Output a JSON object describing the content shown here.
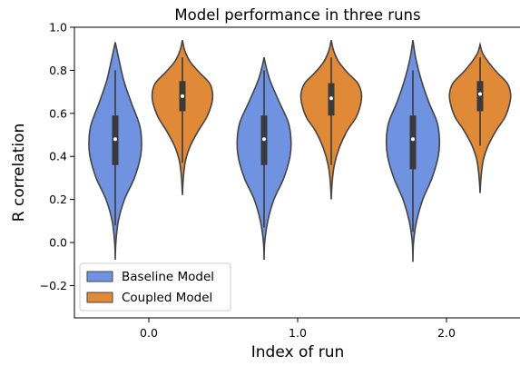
{
  "chart_data": {
    "type": "violin",
    "title": "Model performance in three runs",
    "xlabel": "Index of run",
    "ylabel": "R correlation",
    "categories": [
      "0.0",
      "1.0",
      "2.0"
    ],
    "ylim": [
      -0.35,
      1.0
    ],
    "yticks": [
      -0.2,
      0.0,
      0.2,
      0.4,
      0.6,
      0.8,
      1.0
    ],
    "ytick_labels": [
      "−0.2",
      "0.0",
      "0.2",
      "0.4",
      "0.6",
      "0.8",
      "1.0"
    ],
    "grid": false,
    "legend": {
      "position": "lower-left"
    },
    "series": [
      {
        "name": "Baseline Model",
        "color": "#6f93e0",
        "violins": [
          {
            "min": -0.08,
            "max": 0.93,
            "q1": 0.36,
            "median": 0.48,
            "q3": 0.59,
            "whisker_low": 0.08,
            "whisker_high": 0.8,
            "profile": [
              [
                -0.08,
                0.0
              ],
              [
                0.0,
                0.02
              ],
              [
                0.1,
                0.1
              ],
              [
                0.2,
                0.3
              ],
              [
                0.3,
                0.62
              ],
              [
                0.4,
                0.82
              ],
              [
                0.48,
                0.85
              ],
              [
                0.55,
                0.78
              ],
              [
                0.65,
                0.52
              ],
              [
                0.75,
                0.28
              ],
              [
                0.85,
                0.12
              ],
              [
                0.93,
                0.0
              ]
            ]
          },
          {
            "min": -0.08,
            "max": 0.86,
            "q1": 0.36,
            "median": 0.48,
            "q3": 0.59,
            "whisker_low": 0.07,
            "whisker_high": 0.8,
            "profile": [
              [
                -0.08,
                0.0
              ],
              [
                0.0,
                0.02
              ],
              [
                0.1,
                0.12
              ],
              [
                0.2,
                0.32
              ],
              [
                0.3,
                0.64
              ],
              [
                0.4,
                0.84
              ],
              [
                0.48,
                0.87
              ],
              [
                0.56,
                0.78
              ],
              [
                0.65,
                0.5
              ],
              [
                0.75,
                0.2
              ],
              [
                0.82,
                0.06
              ],
              [
                0.86,
                0.0
              ]
            ]
          },
          {
            "min": -0.09,
            "max": 0.94,
            "q1": 0.34,
            "median": 0.48,
            "q3": 0.59,
            "whisker_low": 0.05,
            "whisker_high": 0.8,
            "profile": [
              [
                -0.09,
                0.0
              ],
              [
                0.0,
                0.02
              ],
              [
                0.1,
                0.12
              ],
              [
                0.2,
                0.32
              ],
              [
                0.3,
                0.62
              ],
              [
                0.4,
                0.82
              ],
              [
                0.48,
                0.86
              ],
              [
                0.56,
                0.78
              ],
              [
                0.65,
                0.52
              ],
              [
                0.75,
                0.28
              ],
              [
                0.85,
                0.1
              ],
              [
                0.94,
                0.0
              ]
            ]
          }
        ]
      },
      {
        "name": "Coupled Model",
        "color": "#e08a37",
        "violins": [
          {
            "min": 0.22,
            "max": 0.94,
            "q1": 0.61,
            "median": 0.68,
            "q3": 0.75,
            "whisker_low": 0.37,
            "whisker_high": 0.86,
            "profile": [
              [
                0.22,
                0.0
              ],
              [
                0.3,
                0.03
              ],
              [
                0.38,
                0.1
              ],
              [
                0.45,
                0.26
              ],
              [
                0.52,
                0.52
              ],
              [
                0.58,
                0.78
              ],
              [
                0.64,
                0.94
              ],
              [
                0.69,
                0.98
              ],
              [
                0.74,
                0.88
              ],
              [
                0.79,
                0.55
              ],
              [
                0.84,
                0.25
              ],
              [
                0.89,
                0.08
              ],
              [
                0.94,
                0.0
              ]
            ]
          },
          {
            "min": 0.2,
            "max": 0.94,
            "q1": 0.59,
            "median": 0.67,
            "q3": 0.74,
            "whisker_low": 0.36,
            "whisker_high": 0.86,
            "profile": [
              [
                0.2,
                0.0
              ],
              [
                0.28,
                0.03
              ],
              [
                0.36,
                0.1
              ],
              [
                0.44,
                0.26
              ],
              [
                0.52,
                0.52
              ],
              [
                0.58,
                0.8
              ],
              [
                0.64,
                0.95
              ],
              [
                0.69,
                0.98
              ],
              [
                0.74,
                0.86
              ],
              [
                0.79,
                0.52
              ],
              [
                0.84,
                0.24
              ],
              [
                0.89,
                0.08
              ],
              [
                0.94,
                0.0
              ]
            ]
          },
          {
            "min": 0.23,
            "max": 0.92,
            "q1": 0.61,
            "median": 0.69,
            "q3": 0.75,
            "whisker_low": 0.45,
            "whisker_high": 0.86,
            "profile": [
              [
                0.23,
                0.0
              ],
              [
                0.3,
                0.03
              ],
              [
                0.38,
                0.1
              ],
              [
                0.45,
                0.26
              ],
              [
                0.52,
                0.52
              ],
              [
                0.58,
                0.8
              ],
              [
                0.64,
                0.95
              ],
              [
                0.69,
                0.99
              ],
              [
                0.74,
                0.88
              ],
              [
                0.79,
                0.55
              ],
              [
                0.84,
                0.26
              ],
              [
                0.88,
                0.08
              ],
              [
                0.92,
                0.0
              ]
            ]
          }
        ]
      }
    ]
  }
}
